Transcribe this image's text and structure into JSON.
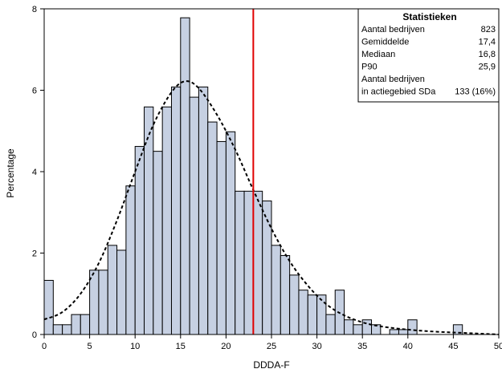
{
  "chart_data": {
    "type": "bar",
    "xlabel": "DDDA-F",
    "ylabel": "Percentage",
    "xlim": [
      0,
      50
    ],
    "ylim": [
      0,
      8
    ],
    "xticks": [
      0,
      5,
      10,
      15,
      20,
      25,
      30,
      35,
      40,
      45,
      50
    ],
    "yticks": [
      0,
      2,
      4,
      6,
      8
    ],
    "bin_width": 1,
    "bins": [
      {
        "x0": 0,
        "value": 1.33
      },
      {
        "x0": 1,
        "value": 0.24
      },
      {
        "x0": 2,
        "value": 0.24
      },
      {
        "x0": 3,
        "value": 0.49
      },
      {
        "x0": 4,
        "value": 0.49
      },
      {
        "x0": 5,
        "value": 1.58
      },
      {
        "x0": 6,
        "value": 1.58
      },
      {
        "x0": 7,
        "value": 2.19
      },
      {
        "x0": 8,
        "value": 2.07
      },
      {
        "x0": 9,
        "value": 3.65
      },
      {
        "x0": 10,
        "value": 4.62
      },
      {
        "x0": 11,
        "value": 5.59
      },
      {
        "x0": 12,
        "value": 4.5
      },
      {
        "x0": 13,
        "value": 5.59
      },
      {
        "x0": 14,
        "value": 6.08
      },
      {
        "x0": 15,
        "value": 7.78
      },
      {
        "x0": 16,
        "value": 5.83
      },
      {
        "x0": 17,
        "value": 6.08
      },
      {
        "x0": 18,
        "value": 5.22
      },
      {
        "x0": 19,
        "value": 4.74
      },
      {
        "x0": 20,
        "value": 4.98
      },
      {
        "x0": 21,
        "value": 3.52
      },
      {
        "x0": 22,
        "value": 3.52
      },
      {
        "x0": 23,
        "value": 3.52
      },
      {
        "x0": 24,
        "value": 3.28
      },
      {
        "x0": 25,
        "value": 2.19
      },
      {
        "x0": 26,
        "value": 1.94
      },
      {
        "x0": 27,
        "value": 1.46
      },
      {
        "x0": 28,
        "value": 1.09
      },
      {
        "x0": 29,
        "value": 0.97
      },
      {
        "x0": 30,
        "value": 0.97
      },
      {
        "x0": 31,
        "value": 0.49
      },
      {
        "x0": 32,
        "value": 1.09
      },
      {
        "x0": 33,
        "value": 0.36
      },
      {
        "x0": 34,
        "value": 0.24
      },
      {
        "x0": 35,
        "value": 0.36
      },
      {
        "x0": 36,
        "value": 0.24
      },
      {
        "x0": 37,
        "value": 0.0
      },
      {
        "x0": 38,
        "value": 0.12
      },
      {
        "x0": 39,
        "value": 0.12
      },
      {
        "x0": 40,
        "value": 0.36
      },
      {
        "x0": 41,
        "value": 0.0
      },
      {
        "x0": 42,
        "value": 0.0
      },
      {
        "x0": 43,
        "value": 0.0
      },
      {
        "x0": 44,
        "value": 0.0
      },
      {
        "x0": 45,
        "value": 0.24
      }
    ],
    "density_curve": {
      "style": "dashed",
      "color": "#000000",
      "points": [
        [
          0,
          0.37
        ],
        [
          2,
          0.55
        ],
        [
          4,
          1.0
        ],
        [
          6,
          1.75
        ],
        [
          8,
          2.8
        ],
        [
          10,
          4.0
        ],
        [
          12,
          5.15
        ],
        [
          14,
          5.95
        ],
        [
          15.5,
          6.22
        ],
        [
          17,
          6.05
        ],
        [
          19,
          5.4
        ],
        [
          21,
          4.55
        ],
        [
          23,
          3.55
        ],
        [
          25,
          2.6
        ],
        [
          27,
          1.8
        ],
        [
          29,
          1.2
        ],
        [
          31,
          0.75
        ],
        [
          33,
          0.47
        ],
        [
          35,
          0.3
        ],
        [
          37,
          0.2
        ],
        [
          40,
          0.12
        ],
        [
          43,
          0.07
        ],
        [
          46,
          0.04
        ],
        [
          50,
          0.0
        ]
      ]
    },
    "reference_line": {
      "x": 23,
      "color": "#e00000"
    },
    "bar_color": "#c6d0e2",
    "bar_edge_color": "#000000",
    "grid": false
  },
  "stats": {
    "title": "Statistieken",
    "rows": [
      {
        "label": "Aantal bedrijven",
        "value": "823"
      },
      {
        "label": "Gemiddelde",
        "value": "17,4"
      },
      {
        "label": "Mediaan",
        "value": "16,8"
      },
      {
        "label": "P90",
        "value": "25,9"
      },
      {
        "label": "Aantal bedrijven",
        "value": ""
      },
      {
        "label": "in actiegebied SDa",
        "value": "133 (16%)"
      }
    ]
  }
}
